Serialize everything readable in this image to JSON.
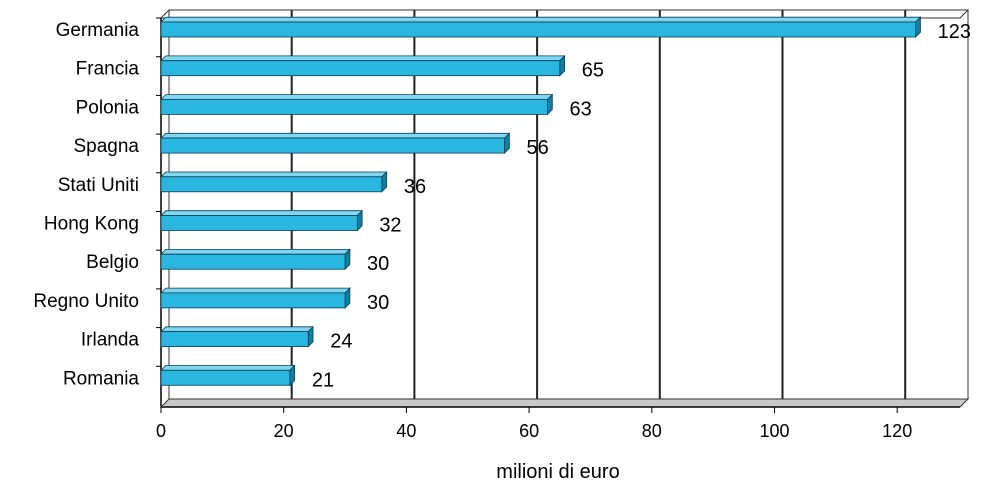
{
  "chart_data": {
    "type": "bar",
    "orientation": "horizontal",
    "categories": [
      "Germania",
      "Francia",
      "Polonia",
      "Spagna",
      "Stati Uniti",
      "Hong Kong",
      "Belgio",
      "Regno Unito",
      "Irlanda",
      "Romania"
    ],
    "values": [
      123,
      65,
      63,
      56,
      36,
      32,
      30,
      30,
      24,
      21
    ],
    "xlabel": "milioni di euro",
    "ylabel": "",
    "title": "",
    "xlim": [
      0,
      130
    ],
    "xticks": [
      "0",
      "20",
      "40",
      "60",
      "80",
      "100",
      "120"
    ],
    "grid": true,
    "legend": "none",
    "colors": {
      "bar_front": "#29b6e0",
      "bar_top": "#7fd6f0",
      "bar_side": "#0f7fa3",
      "gridline": "#222222",
      "frame": "#333333"
    }
  }
}
